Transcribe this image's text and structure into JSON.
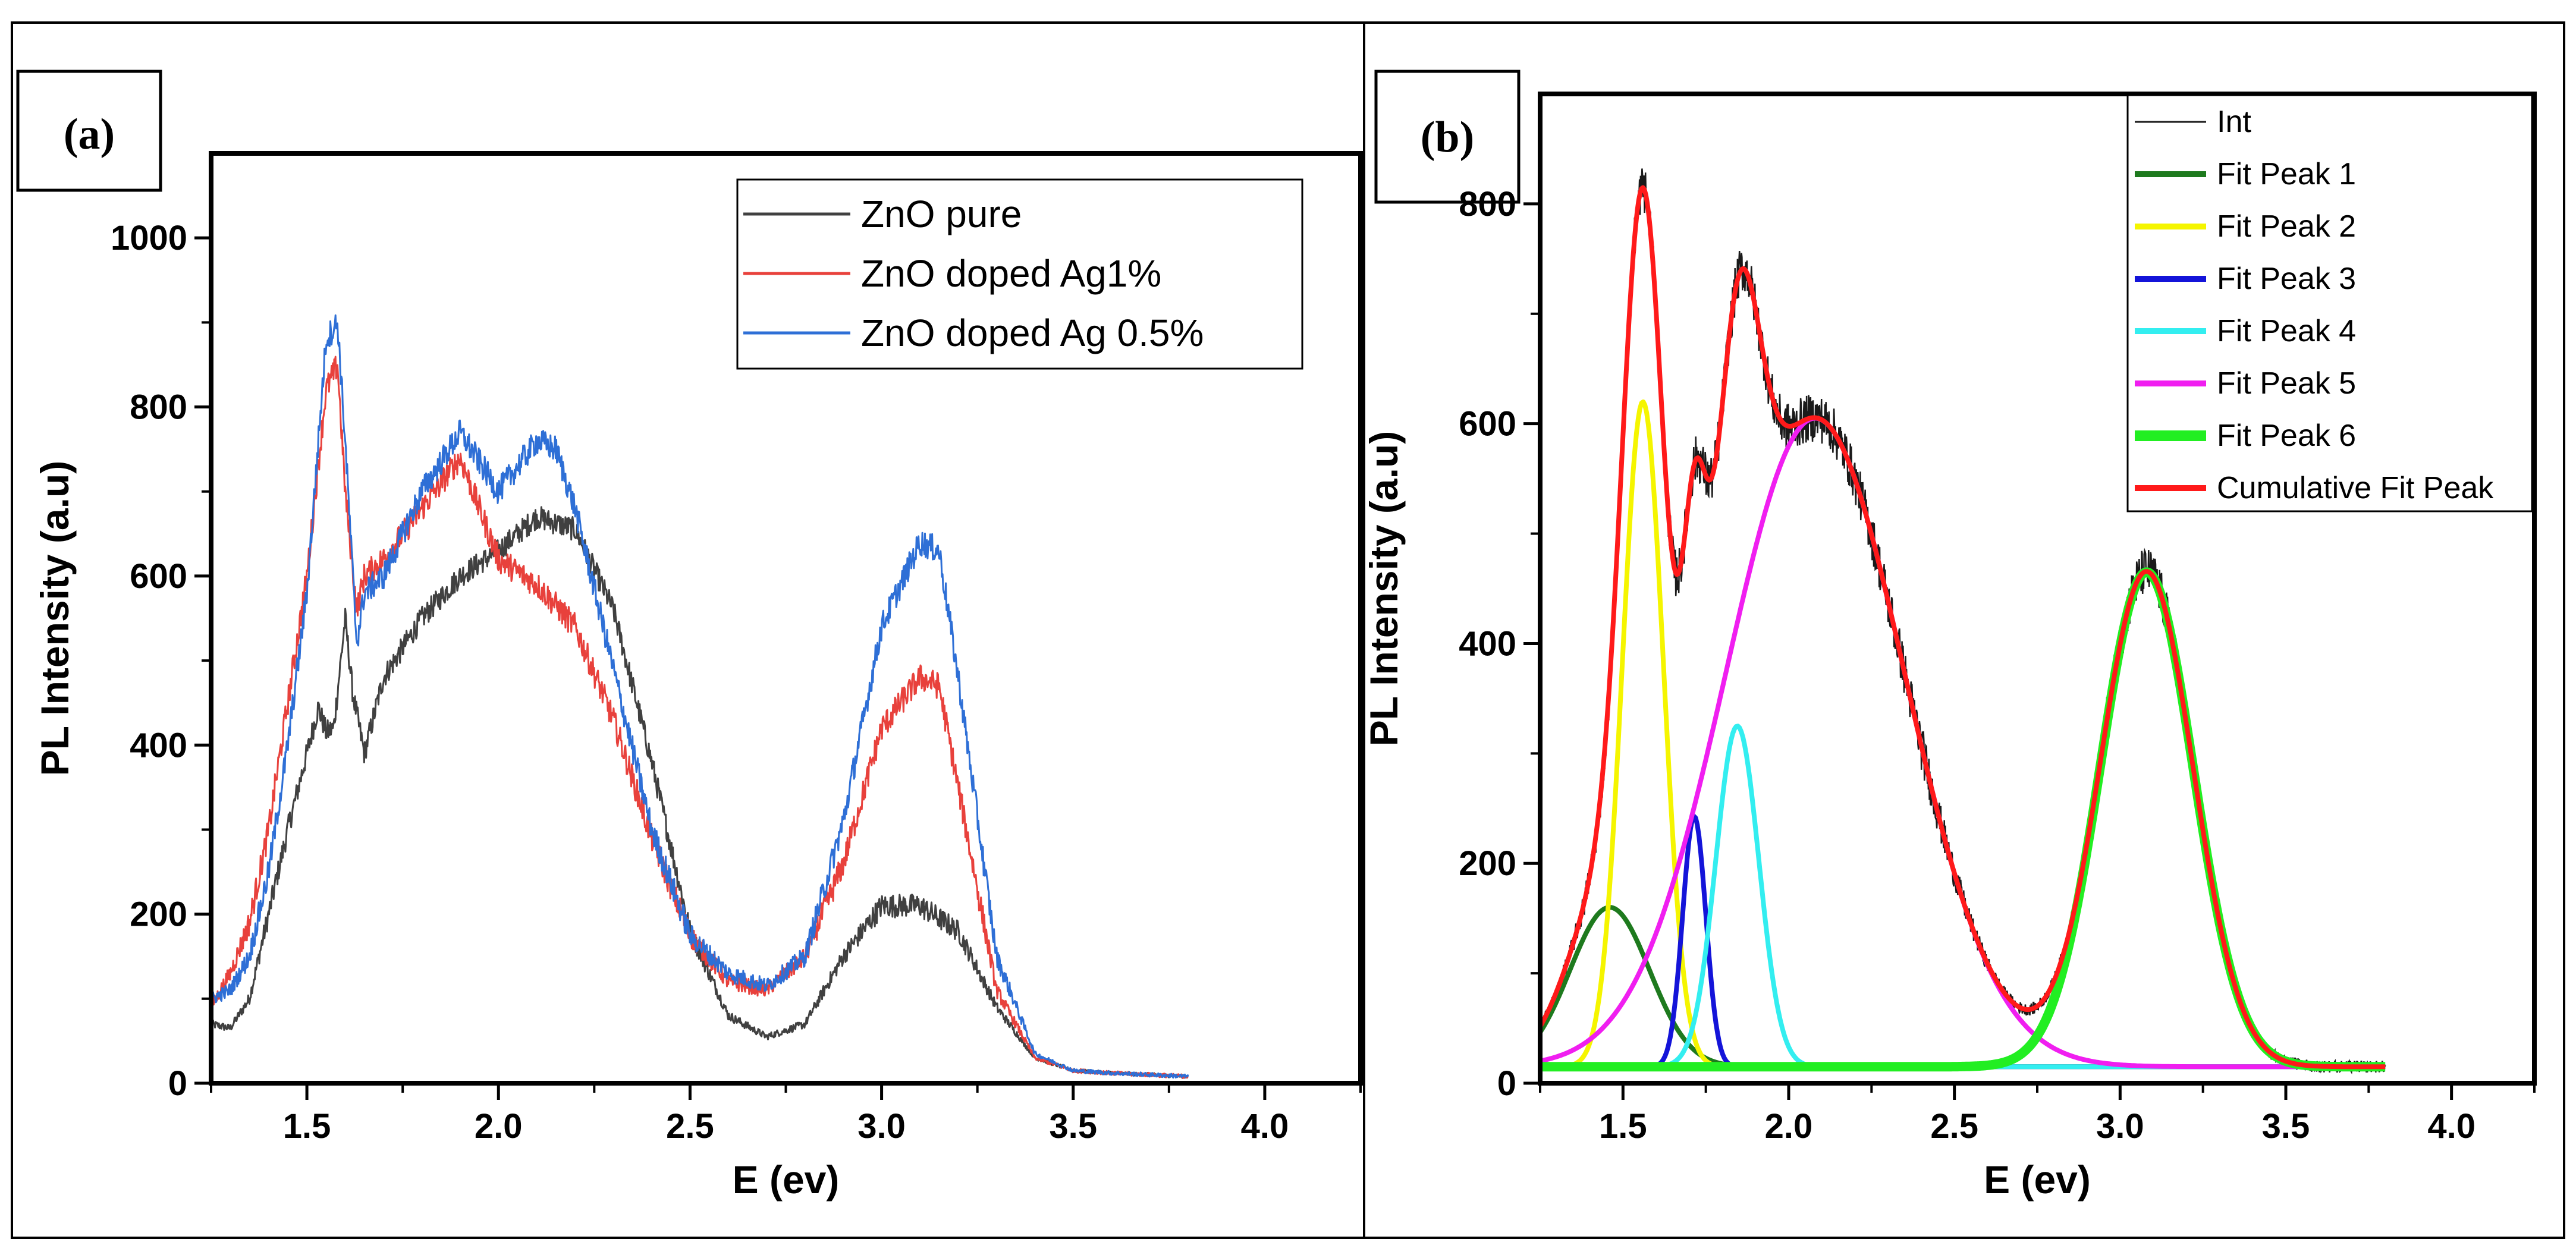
{
  "chart_data": [
    {
      "id": "a",
      "type": "line",
      "panel_label": "(a)",
      "xlabel": "E (ev)",
      "ylabel": "PL Intensity (a.u)",
      "xlim": [
        1.25,
        4.25
      ],
      "ylim": [
        0,
        1100
      ],
      "xticks": [
        1.5,
        2.0,
        2.5,
        3.0,
        3.5,
        4.0
      ],
      "xtick_labels": [
        "1.5",
        "2.0",
        "2.5",
        "3.0",
        "3.5",
        "4.0"
      ],
      "yticks": [
        0,
        200,
        400,
        600,
        800,
        1000
      ],
      "ytick_labels": [
        "0",
        "200",
        "400",
        "600",
        "800",
        "1000"
      ],
      "legend_position": "top-right",
      "series": [
        {
          "name": "ZnO pure",
          "color": "#404040",
          "noise": 14,
          "x": [
            1.25,
            1.3,
            1.35,
            1.4,
            1.45,
            1.5,
            1.53,
            1.55,
            1.57,
            1.6,
            1.62,
            1.65,
            1.7,
            1.8,
            1.9,
            2.0,
            2.1,
            2.2,
            2.3,
            2.4,
            2.5,
            2.6,
            2.7,
            2.8,
            2.9,
            3.0,
            3.1,
            3.2,
            3.3,
            3.4,
            3.5,
            3.6,
            3.7,
            3.8
          ],
          "y": [
            70,
            65,
            100,
            200,
            300,
            390,
            445,
            415,
            420,
            550,
            460,
            390,
            480,
            550,
            600,
            630,
            670,
            655,
            560,
            380,
            180,
            80,
            55,
            70,
            150,
            210,
            210,
            180,
            90,
            30,
            15,
            12,
            10,
            8
          ]
        },
        {
          "name": "ZnO doped Ag1%",
          "color": "#e8413c",
          "noise": 16,
          "x": [
            1.25,
            1.3,
            1.35,
            1.4,
            1.45,
            1.5,
            1.55,
            1.58,
            1.6,
            1.63,
            1.65,
            1.7,
            1.8,
            1.9,
            2.0,
            2.1,
            2.2,
            2.3,
            2.4,
            2.5,
            2.6,
            2.7,
            2.8,
            2.9,
            3.0,
            3.1,
            3.15,
            3.2,
            3.3,
            3.4,
            3.5,
            3.6,
            3.7,
            3.8
          ],
          "y": [
            90,
            130,
            190,
            300,
            450,
            600,
            820,
            850,
            700,
            560,
            600,
            620,
            680,
            740,
            620,
            590,
            540,
            430,
            290,
            175,
            120,
            110,
            150,
            260,
            420,
            480,
            470,
            350,
            110,
            30,
            15,
            12,
            10,
            8
          ]
        },
        {
          "name": "ZnO doped Ag 0.5%",
          "color": "#2e6fd6",
          "noise": 16,
          "x": [
            1.25,
            1.3,
            1.35,
            1.4,
            1.45,
            1.5,
            1.55,
            1.58,
            1.6,
            1.63,
            1.65,
            1.7,
            1.8,
            1.9,
            2.0,
            2.1,
            2.15,
            2.2,
            2.3,
            2.4,
            2.5,
            2.6,
            2.7,
            2.8,
            2.9,
            3.0,
            3.1,
            3.15,
            3.2,
            3.3,
            3.4,
            3.5,
            3.6,
            3.7,
            3.8
          ],
          "y": [
            100,
            110,
            150,
            250,
            400,
            580,
            880,
            900,
            760,
            520,
            580,
            600,
            700,
            770,
            700,
            760,
            750,
            680,
            490,
            300,
            175,
            130,
            115,
            150,
            310,
            540,
            640,
            630,
            480,
            150,
            35,
            15,
            12,
            10,
            8
          ]
        }
      ]
    },
    {
      "id": "b",
      "type": "line",
      "panel_label": "(b)",
      "xlabel": "E (ev)",
      "ylabel": "PL Intensity (a.u)",
      "xlim": [
        1.25,
        4.25
      ],
      "ylim": [
        0,
        900
      ],
      "xticks": [
        1.5,
        2.0,
        2.5,
        3.0,
        3.5,
        4.0
      ],
      "xtick_labels": [
        "1.5",
        "2.0",
        "2.5",
        "3.0",
        "3.5",
        "4.0"
      ],
      "yticks": [
        0,
        200,
        400,
        600,
        800
      ],
      "ytick_labels": [
        "0",
        "200",
        "400",
        "600",
        "800"
      ],
      "legend_position": "top-right",
      "baseline": 15,
      "xrange": [
        1.25,
        3.8
      ],
      "series": [
        {
          "name": "Int",
          "color": "#1a1a1a",
          "kind": "data",
          "noise": 22
        },
        {
          "name": "Fit Peak 1",
          "color": "#1e7a1e",
          "kind": "gauss",
          "center": 1.46,
          "amplitude": 145,
          "sigma": 0.12
        },
        {
          "name": "Fit Peak 2",
          "color": "#f5f500",
          "kind": "gauss",
          "center": 1.56,
          "amplitude": 605,
          "sigma": 0.062
        },
        {
          "name": "Fit Peak 3",
          "color": "#1414d9",
          "kind": "gauss",
          "center": 1.715,
          "amplitude": 228,
          "sigma": 0.035
        },
        {
          "name": "Fit Peak 4",
          "color": "#33eef0",
          "kind": "gauss",
          "center": 1.845,
          "amplitude": 310,
          "sigma": 0.065
        },
        {
          "name": "Fit Peak 5",
          "color": "#f01ef0",
          "kind": "gauss",
          "center": 2.08,
          "amplitude": 590,
          "sigma": 0.27
        },
        {
          "name": "Fit Peak 6",
          "color": "#22ee22",
          "kind": "gauss",
          "center": 3.08,
          "amplitude": 450,
          "sigma": 0.14
        },
        {
          "name": "Cumulative Fit Peak",
          "color": "#ff1a1a",
          "kind": "sum"
        }
      ]
    }
  ]
}
